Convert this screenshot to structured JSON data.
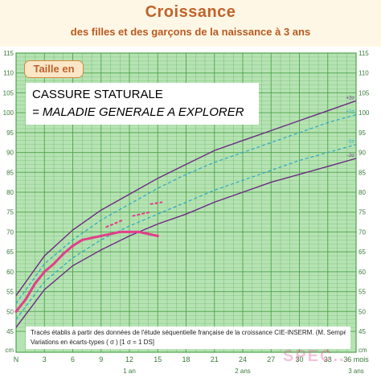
{
  "header": {
    "title": "Croissance",
    "subtitle": "des filles et des garçons de la naissance à 3 ans"
  },
  "unit_label": "Taille en cm",
  "annotation": {
    "line1": "CASSURE STATURALE",
    "line2": "= MALADIE GENERALE A EXPLORER"
  },
  "footnote": {
    "line1": "Tracés établis à partir des données de l'étude séquentielle française de la croissance CIE-INSERM. (M. Sempé)",
    "line2": "Variations en écarts-types ( σ ) [1 σ = 1 DS]"
  },
  "watermark": "SPEC...",
  "colors": {
    "background": "#b6e3b3",
    "grid": "#4fa34c",
    "axis_text": "#3a7a3a",
    "sd_outer": "#6b2a83",
    "sd_inner": "#2aa6c9",
    "patient": "#e0408a",
    "label_bg": "#fbe7c8"
  },
  "chart_data": {
    "type": "line",
    "xlabel": "mois",
    "ylabel": "cm",
    "xlim": [
      0,
      36
    ],
    "ylim": [
      0,
      115
    ],
    "x_ticks": [
      0,
      3,
      6,
      9,
      12,
      15,
      18,
      21,
      24,
      27,
      30,
      33,
      36
    ],
    "y_ticks": [
      0,
      45,
      50,
      55,
      60,
      65,
      70,
      75,
      80,
      85,
      90,
      95,
      100,
      105,
      110,
      115
    ],
    "y_tick_labels": [
      "cm",
      "45",
      "50",
      "55",
      "60",
      "65",
      "70",
      "75",
      "80",
      "85",
      "90",
      "95",
      "100",
      "105",
      "110",
      "115"
    ],
    "x_tick_labels": [
      "N",
      "3",
      "6",
      "9",
      "12",
      "15",
      "18",
      "21",
      "24",
      "27",
      "30",
      "33",
      "36 mois"
    ],
    "age_labels": [
      {
        "x": 12,
        "label": "1 an"
      },
      {
        "x": 24,
        "label": "2 ans"
      },
      {
        "x": 36,
        "label": "3 ans"
      }
    ],
    "grid": true,
    "series": [
      {
        "name": "+2σ",
        "style": "outer",
        "x": [
          0,
          3,
          6,
          9,
          12,
          15,
          18,
          21,
          24,
          27,
          30,
          33,
          36
        ],
        "y": [
          54,
          64,
          70.5,
          75.5,
          79.5,
          83.5,
          87,
          90.5,
          93,
          95.5,
          98,
          100.5,
          103
        ]
      },
      {
        "name": "+1σ",
        "style": "inner",
        "x": [
          0,
          3,
          6,
          9,
          12,
          15,
          18,
          21,
          24,
          27,
          30,
          33,
          36
        ],
        "y": [
          52,
          62,
          68,
          73,
          77,
          81,
          84.5,
          87.5,
          90,
          92.5,
          95,
          97.5,
          99.5
        ]
      },
      {
        "name": "-1σ",
        "style": "inner",
        "x": [
          0,
          3,
          6,
          9,
          12,
          15,
          18,
          21,
          24,
          27,
          30,
          33,
          36
        ],
        "y": [
          48,
          57.5,
          63.5,
          68,
          71.5,
          74.5,
          77.5,
          80.5,
          83,
          85.5,
          88,
          90,
          92
        ]
      },
      {
        "name": "-2σ",
        "style": "outer",
        "x": [
          0,
          3,
          6,
          9,
          12,
          15,
          18,
          21,
          24,
          27,
          30,
          33,
          36
        ],
        "y": [
          46,
          55.5,
          61.5,
          65.5,
          69,
          72,
          74.5,
          77.5,
          80,
          82.5,
          84.5,
          86.5,
          88.5
        ]
      }
    ],
    "sd_labels": [
      "+2σ",
      "+1σ",
      "-1σ",
      "-2σ"
    ],
    "patient": {
      "x": [
        0,
        1,
        2,
        3,
        4,
        5,
        6,
        7,
        8,
        9,
        10,
        11,
        12,
        13,
        14,
        15
      ],
      "y": [
        50,
        53,
        57,
        60,
        62,
        64.5,
        66.5,
        68,
        68.5,
        69,
        69.5,
        70,
        70,
        70,
        69.5,
        69
      ]
    },
    "predicted_segments": [
      {
        "x": [
          9.5,
          11.3
        ],
        "y": [
          71.2,
          73
        ]
      },
      {
        "x": [
          12.3,
          14.2
        ],
        "y": [
          74,
          75
        ]
      },
      {
        "x": [
          14.2,
          15.5
        ],
        "y": [
          77,
          77.5
        ]
      }
    ]
  }
}
